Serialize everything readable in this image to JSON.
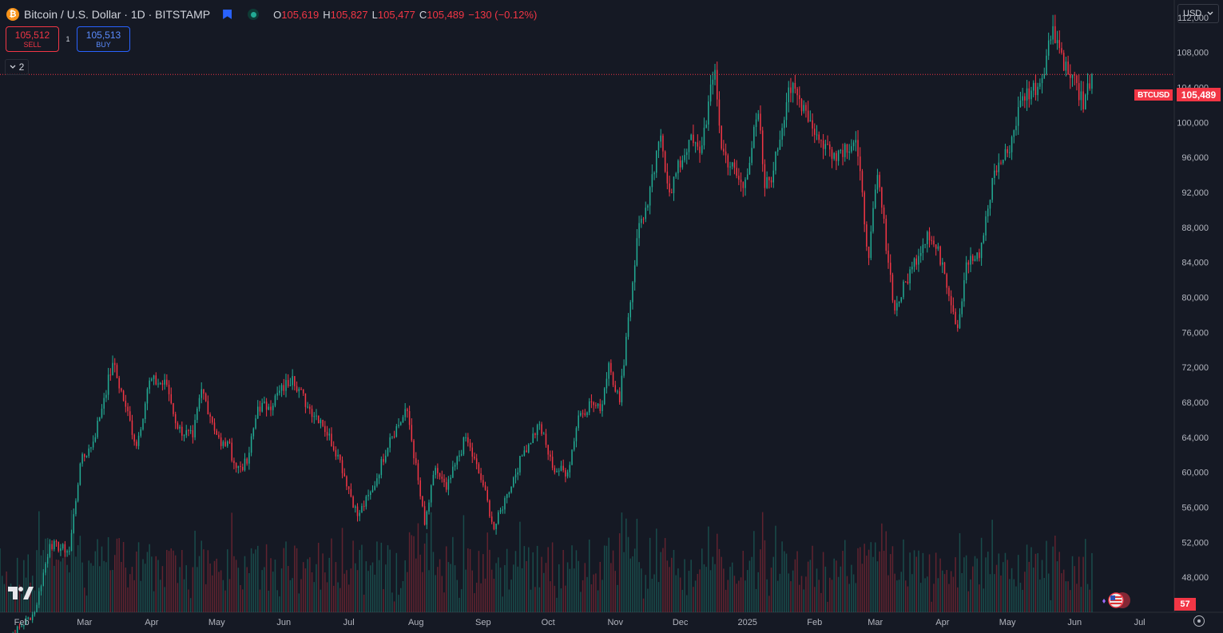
{
  "header": {
    "title": "Bitcoin / U.S. Dollar · 1D · BITSTAMP",
    "ohlc": {
      "o_label": "O",
      "o_value": "105,619",
      "h_label": "H",
      "h_value": "105,827",
      "l_label": "L",
      "l_value": "105,477",
      "c_label": "C",
      "c_value": "105,489",
      "change": "−130 (−0.12%)"
    },
    "colors": {
      "down": "#f23645",
      "up": "#22ab94",
      "accent": "#2962ff"
    }
  },
  "trade_panel": {
    "sell_price": "105,512",
    "sell_label": "SELL",
    "spread": "1",
    "buy_price": "105,513",
    "buy_label": "BUY"
  },
  "indicator_toggle": {
    "count": "2"
  },
  "price_scale": {
    "currency": "USD",
    "current_price_label": "105,489",
    "symbol_tag": "BTCUSD",
    "volume_label": "57"
  },
  "icons": [
    "bitcoin-icon",
    "flag-icon",
    "market-status-icon",
    "chevron-down-icon",
    "tradingview-logo",
    "news-flag-icon",
    "settings-icon"
  ],
  "chart_data": {
    "type": "candlestick",
    "symbol": "BTCUSD",
    "interval": "1D",
    "ylim": [
      44000,
      114000
    ],
    "y_ticks": [
      "112,000",
      "108,000",
      "104,000",
      "100,000",
      "96,000",
      "92,000",
      "88,000",
      "84,000",
      "80,000",
      "76,000",
      "72,000",
      "68,000",
      "64,000",
      "60,000",
      "56,000",
      "52,000",
      "48,000"
    ],
    "y_tick_values": [
      112000,
      108000,
      104000,
      100000,
      96000,
      92000,
      88000,
      84000,
      80000,
      76000,
      72000,
      68000,
      64000,
      60000,
      56000,
      52000,
      48000
    ],
    "x_ticks": [
      "Feb",
      "Mar",
      "Apr",
      "May",
      "Jun",
      "Jul",
      "Aug",
      "Sep",
      "Oct",
      "Nov",
      "Dec",
      "2025",
      "Feb",
      "Mar",
      "Apr",
      "May",
      "Jun",
      "Jul"
    ],
    "x_tick_dates": [
      "2024-02-01",
      "2024-03-01",
      "2024-04-01",
      "2024-05-01",
      "2024-06-01",
      "2024-07-01",
      "2024-08-01",
      "2024-09-01",
      "2024-10-01",
      "2024-11-01",
      "2024-12-01",
      "2025-01-01",
      "2025-02-01",
      "2025-03-01",
      "2025-04-01",
      "2025-05-01",
      "2025-06-01",
      "2025-07-01"
    ],
    "x_range": [
      "2024-01-22",
      "2025-07-17"
    ],
    "last_close": 105489,
    "close_anchors": [
      {
        "date": "2024-01-22",
        "close": 40000
      },
      {
        "date": "2024-02-07",
        "close": 44000
      },
      {
        "date": "2024-02-14",
        "close": 51800
      },
      {
        "date": "2024-02-23",
        "close": 51000
      },
      {
        "date": "2024-02-28",
        "close": 61000
      },
      {
        "date": "2024-03-05",
        "close": 63500
      },
      {
        "date": "2024-03-10",
        "close": 68500
      },
      {
        "date": "2024-03-14",
        "close": 72500
      },
      {
        "date": "2024-03-20",
        "close": 67500
      },
      {
        "date": "2024-03-25",
        "close": 63000
      },
      {
        "date": "2024-03-31",
        "close": 70500
      },
      {
        "date": "2024-04-08",
        "close": 70000
      },
      {
        "date": "2024-04-13",
        "close": 65000
      },
      {
        "date": "2024-04-20",
        "close": 64000
      },
      {
        "date": "2024-04-24",
        "close": 69500
      },
      {
        "date": "2024-05-03",
        "close": 63000
      },
      {
        "date": "2024-05-06",
        "close": 63500
      },
      {
        "date": "2024-05-10",
        "close": 60500
      },
      {
        "date": "2024-05-15",
        "close": 61000
      },
      {
        "date": "2024-05-20",
        "close": 67500
      },
      {
        "date": "2024-05-25",
        "close": 67500
      },
      {
        "date": "2024-06-05",
        "close": 71000
      },
      {
        "date": "2024-06-12",
        "close": 67500
      },
      {
        "date": "2024-06-18",
        "close": 66000
      },
      {
        "date": "2024-06-26",
        "close": 62000
      },
      {
        "date": "2024-07-05",
        "close": 55000
      },
      {
        "date": "2024-07-12",
        "close": 58000
      },
      {
        "date": "2024-07-20",
        "close": 64000
      },
      {
        "date": "2024-07-28",
        "close": 67000
      },
      {
        "date": "2024-08-05",
        "close": 54000
      },
      {
        "date": "2024-08-10",
        "close": 60500
      },
      {
        "date": "2024-08-15",
        "close": 58000
      },
      {
        "date": "2024-08-24",
        "close": 64000
      },
      {
        "date": "2024-09-01",
        "close": 58500
      },
      {
        "date": "2024-09-06",
        "close": 53500
      },
      {
        "date": "2024-09-12",
        "close": 57500
      },
      {
        "date": "2024-09-20",
        "close": 62500
      },
      {
        "date": "2024-09-27",
        "close": 65500
      },
      {
        "date": "2024-10-03",
        "close": 60500
      },
      {
        "date": "2024-10-10",
        "close": 60000
      },
      {
        "date": "2024-10-15",
        "close": 66500
      },
      {
        "date": "2024-10-21",
        "close": 68000
      },
      {
        "date": "2024-10-25",
        "close": 67000
      },
      {
        "date": "2024-10-29",
        "close": 72500
      },
      {
        "date": "2024-11-03",
        "close": 68000
      },
      {
        "date": "2024-11-06",
        "close": 75500
      },
      {
        "date": "2024-11-12",
        "close": 88500
      },
      {
        "date": "2024-11-16",
        "close": 90500
      },
      {
        "date": "2024-11-22",
        "close": 98500
      },
      {
        "date": "2024-11-26",
        "close": 92000
      },
      {
        "date": "2024-12-05",
        "close": 98000
      },
      {
        "date": "2024-12-10",
        "close": 96500
      },
      {
        "date": "2024-12-17",
        "close": 106000
      },
      {
        "date": "2024-12-20",
        "close": 97000
      },
      {
        "date": "2024-12-30",
        "close": 92500
      },
      {
        "date": "2025-01-06",
        "close": 101000
      },
      {
        "date": "2025-01-09",
        "close": 92500
      },
      {
        "date": "2025-01-13",
        "close": 94500
      },
      {
        "date": "2025-01-20",
        "close": 104000
      },
      {
        "date": "2025-01-27",
        "close": 102000
      },
      {
        "date": "2025-02-03",
        "close": 98000
      },
      {
        "date": "2025-02-10",
        "close": 96500
      },
      {
        "date": "2025-02-20",
        "close": 98000
      },
      {
        "date": "2025-02-26",
        "close": 84500
      },
      {
        "date": "2025-03-02",
        "close": 94000
      },
      {
        "date": "2025-03-10",
        "close": 78500
      },
      {
        "date": "2025-03-18",
        "close": 83500
      },
      {
        "date": "2025-03-25",
        "close": 87500
      },
      {
        "date": "2025-04-01",
        "close": 84000
      },
      {
        "date": "2025-04-08",
        "close": 76500
      },
      {
        "date": "2025-04-12",
        "close": 84000
      },
      {
        "date": "2025-04-18",
        "close": 84500
      },
      {
        "date": "2025-04-25",
        "close": 94500
      },
      {
        "date": "2025-05-01",
        "close": 96500
      },
      {
        "date": "2025-05-08",
        "close": 103000
      },
      {
        "date": "2025-05-16",
        "close": 104500
      },
      {
        "date": "2025-05-22",
        "close": 111000
      },
      {
        "date": "2025-05-29",
        "close": 105500
      },
      {
        "date": "2025-06-02",
        "close": 104500
      },
      {
        "date": "2025-06-05",
        "close": 101500
      },
      {
        "date": "2025-06-09",
        "close": 105489
      }
    ]
  }
}
